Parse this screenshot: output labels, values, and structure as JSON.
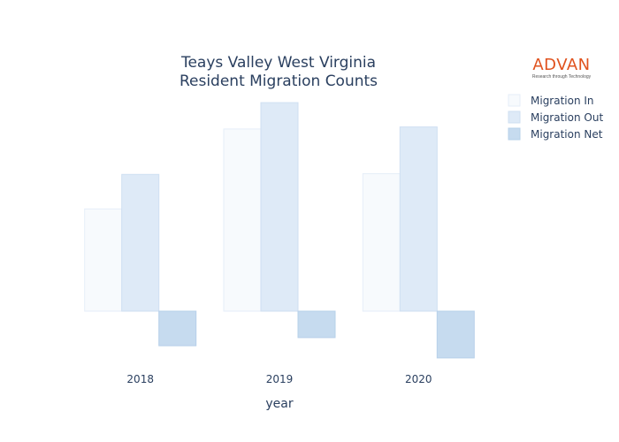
{
  "chart_data": {
    "type": "bar",
    "title_lines": [
      "Teays Valley West Virginia",
      "Resident Migration Counts"
    ],
    "xlabel": "year",
    "ylabel": "",
    "categories": [
      "2018",
      "2019",
      "2020"
    ],
    "ylim": [
      -400,
      1800
    ],
    "series": [
      {
        "name": "Migration In",
        "values": [
          755,
          1345,
          1015
        ],
        "color": "#f7fafd",
        "stroke": "#e6eef8"
      },
      {
        "name": "Migration Out",
        "values": [
          1010,
          1540,
          1360
        ],
        "color": "#deeaf7",
        "stroke": "#cfdff2"
      },
      {
        "name": "Migration Net",
        "values": [
          -255,
          -195,
          -345
        ],
        "color": "#c6dbef",
        "stroke": "#b7d0ea"
      }
    ]
  },
  "logo": {
    "word": "ADVAN",
    "tagline": "Research through Technology"
  }
}
